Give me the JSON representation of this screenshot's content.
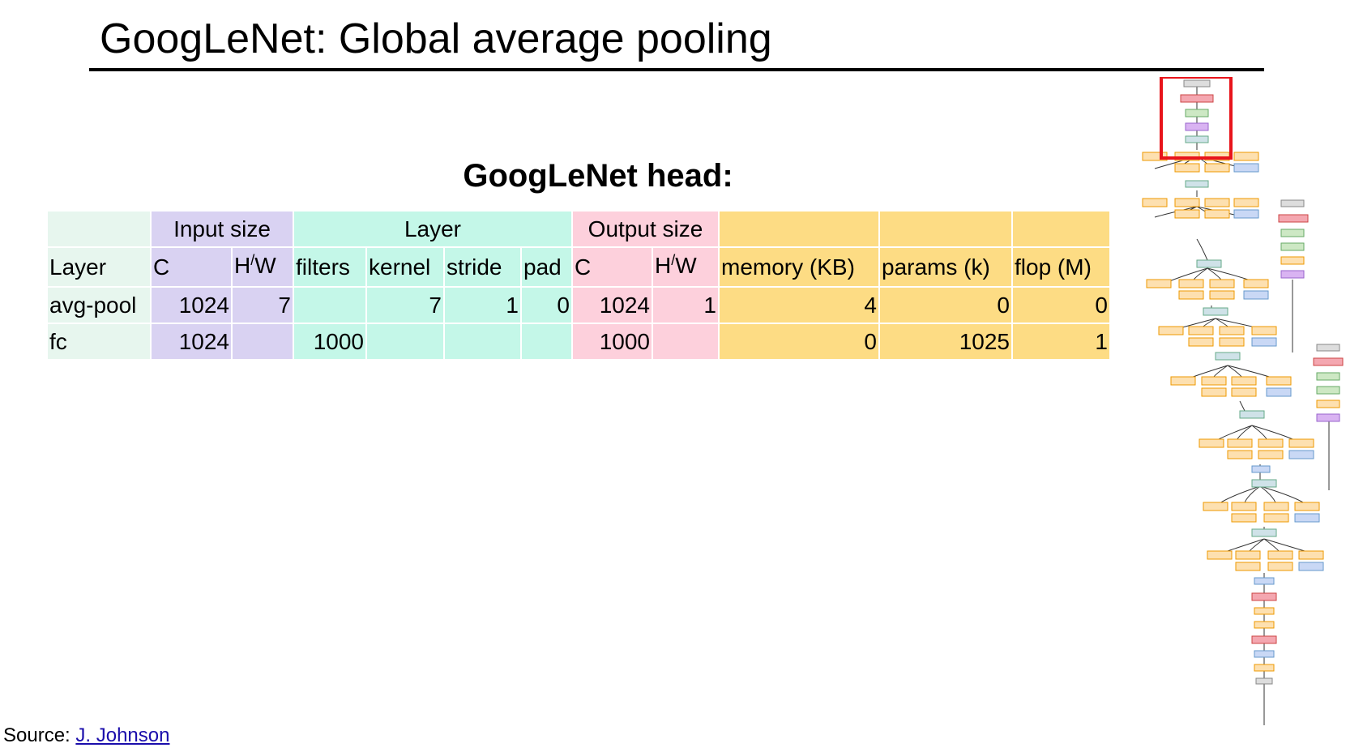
{
  "slide": {
    "title": "GoogLeNet: Global average pooling",
    "subtitle": "GoogLeNet head:"
  },
  "table": {
    "group_headers": {
      "input_size": "Input size",
      "layer": "Layer",
      "output_size": "Output size"
    },
    "columns": {
      "layer": "Layer",
      "in_c": "C",
      "in_hw_h": "H",
      "in_hw_slash": "/",
      "in_hw_w": "W",
      "filters": "filters",
      "kernel": "kernel",
      "stride": "stride",
      "pad": "pad",
      "out_c": "C",
      "out_hw_h": "H",
      "out_hw_slash": "/",
      "out_hw_w": "W",
      "memory": "memory (KB)",
      "params": "params (k)",
      "flop": "flop (M)"
    },
    "rows": [
      {
        "layer": "avg-pool",
        "in_c": "1024",
        "in_hw": "7",
        "filters": "",
        "kernel": "7",
        "stride": "1",
        "pad": "0",
        "out_c": "1024",
        "out_hw": "1",
        "memory": "4",
        "params": "0",
        "flop": "0"
      },
      {
        "layer": "fc",
        "in_c": "1024",
        "in_hw": "",
        "filters": "1000",
        "kernel": "",
        "stride": "",
        "pad": "",
        "out_c": "1000",
        "out_hw": "",
        "memory": "0",
        "params": "1025",
        "flop": "1"
      }
    ]
  },
  "footer": {
    "source_label": "Source: ",
    "source_link": "J. Johnson"
  },
  "colors": {
    "layer_col": "#e7f6ee",
    "input_size": "#d9d2f2",
    "layer_group": "#c4f7e8",
    "output_size": "#fdd0dc",
    "stats": "#fddc84",
    "highlight_box": "#e8141b"
  }
}
